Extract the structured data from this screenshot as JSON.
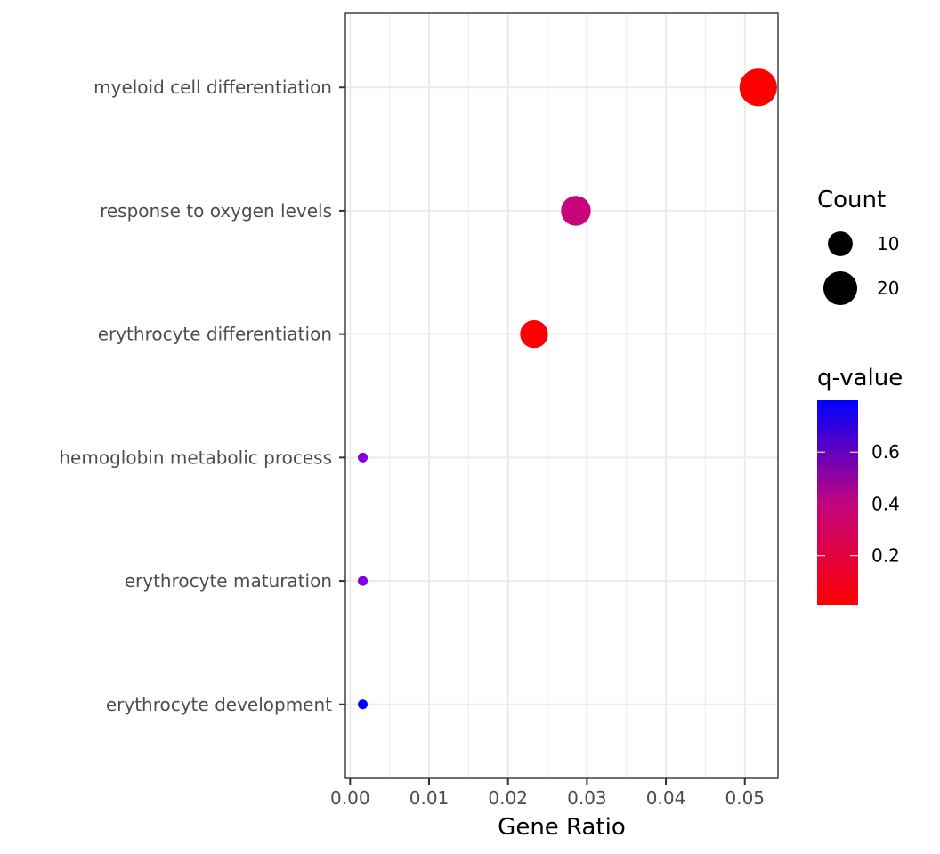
{
  "chart_data": {
    "type": "scatter",
    "title": "",
    "xlabel": "Gene Ratio",
    "ylabel": "",
    "xlim": [
      -0.0006,
      0.0542
    ],
    "x_ticks": [
      0.0,
      0.01,
      0.02,
      0.03,
      0.04,
      0.05
    ],
    "x_tick_labels": [
      "0.00",
      "0.01",
      "0.02",
      "0.03",
      "0.04",
      "0.05"
    ],
    "grid": true,
    "categories": [
      "myeloid cell differentiation",
      "response to oxygen levels",
      "erythrocyte differentiation",
      "hemoglobin metabolic process",
      "erythrocyte maturation",
      "erythrocyte development"
    ],
    "points": [
      {
        "term": "myeloid cell differentiation",
        "gene_ratio": 0.0517,
        "count": 25,
        "q_value": 0.02,
        "color": "#ff0000"
      },
      {
        "term": "response to oxygen levels",
        "gene_ratio": 0.0286,
        "count": 15,
        "q_value": 0.45,
        "color": "#c8047a"
      },
      {
        "term": "erythrocyte differentiation",
        "gene_ratio": 0.0233,
        "count": 13,
        "q_value": 0.02,
        "color": "#ff0000"
      },
      {
        "term": "hemoglobin metabolic process",
        "gene_ratio": 0.0016,
        "count": 1,
        "q_value": 0.72,
        "color": "#8000e0"
      },
      {
        "term": "erythrocyte maturation",
        "gene_ratio": 0.0016,
        "count": 1,
        "q_value": 0.72,
        "color": "#8000e0"
      },
      {
        "term": "erythrocyte development",
        "gene_ratio": 0.0016,
        "count": 1,
        "q_value": 0.8,
        "color": "#0000ff"
      }
    ],
    "legend_position": "right",
    "size_legend": {
      "title": "Count",
      "entries": [
        {
          "label": "10",
          "value": 10
        },
        {
          "label": "20",
          "value": 20
        }
      ]
    },
    "color_legend": {
      "title": "q-value",
      "low_color": "#ff0000",
      "high_color": "#0000ff",
      "range": [
        0.01,
        0.8
      ],
      "ticks": [
        {
          "label": "0.6",
          "value": 0.6
        },
        {
          "label": "0.4",
          "value": 0.4
        },
        {
          "label": "0.2",
          "value": 0.2
        }
      ]
    }
  }
}
